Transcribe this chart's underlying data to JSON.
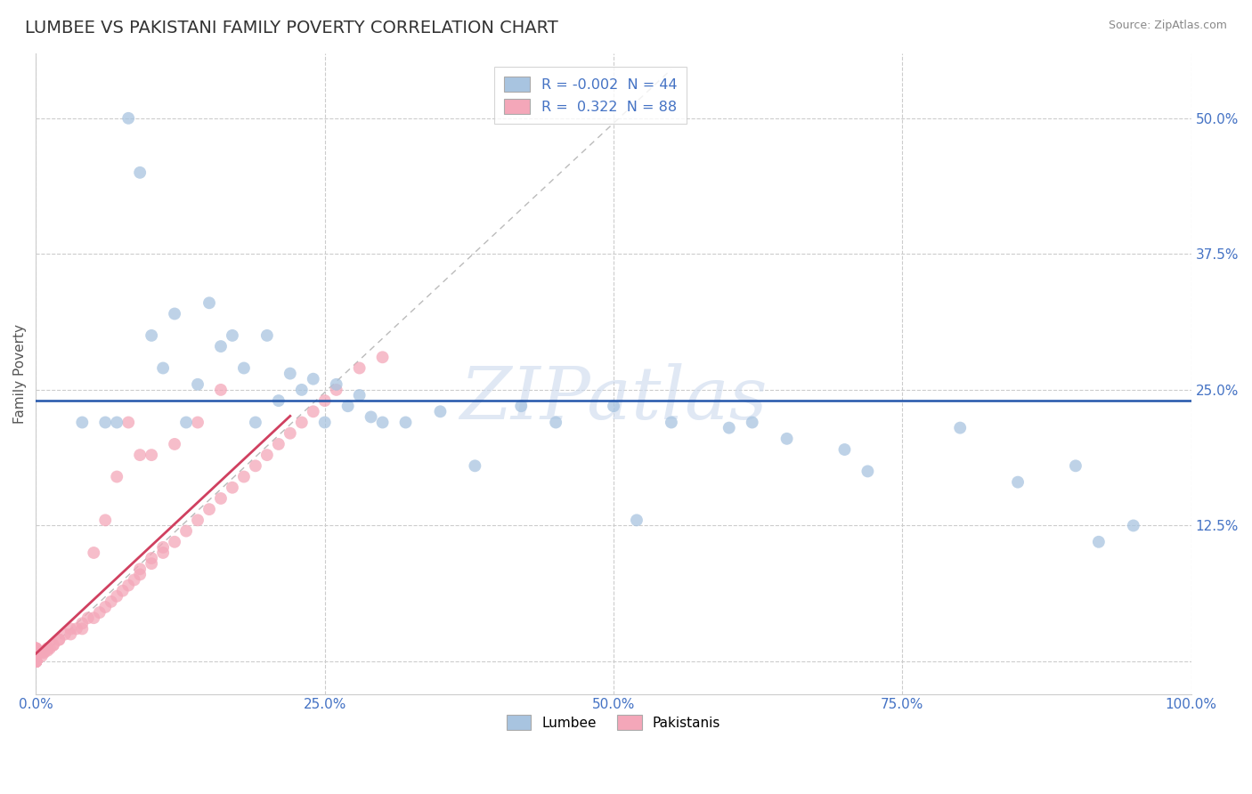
{
  "title": "LUMBEE VS PAKISTANI FAMILY POVERTY CORRELATION CHART",
  "source": "Source: ZipAtlas.com",
  "ylabel": "Family Poverty",
  "xlim": [
    0.0,
    1.0
  ],
  "ylim": [
    -0.03,
    0.56
  ],
  "xticks": [
    0.0,
    0.25,
    0.5,
    0.75,
    1.0
  ],
  "xtick_labels": [
    "0.0%",
    "25.0%",
    "50.0%",
    "75.0%",
    "100.0%"
  ],
  "yticks": [
    0.0,
    0.125,
    0.25,
    0.375,
    0.5
  ],
  "ytick_labels": [
    "",
    "12.5%",
    "25.0%",
    "37.5%",
    "50.0%"
  ],
  "lumbee_R": -0.002,
  "lumbee_N": 44,
  "pakistani_R": 0.322,
  "pakistani_N": 88,
  "lumbee_color": "#a8c4e0",
  "pakistani_color": "#f4a7b9",
  "lumbee_line_color": "#2255aa",
  "pakistani_line_color": "#d04060",
  "watermark": "ZIPatlas",
  "diagonal_color": "#cccccc",
  "grid_color": "#cccccc",
  "lumbee_x": [
    0.04,
    0.08,
    0.09,
    0.1,
    0.11,
    0.12,
    0.13,
    0.15,
    0.16,
    0.17,
    0.18,
    0.19,
    0.2,
    0.22,
    0.25,
    0.26,
    0.28,
    0.3,
    0.35,
    0.42,
    0.5,
    0.55,
    0.6,
    0.65,
    0.7,
    0.8,
    0.9,
    0.92,
    0.06,
    0.07,
    0.14,
    0.21,
    0.23,
    0.24,
    0.27,
    0.29,
    0.32,
    0.38,
    0.45,
    0.52,
    0.62,
    0.72,
    0.85,
    0.95
  ],
  "lumbee_y": [
    0.22,
    0.5,
    0.45,
    0.3,
    0.27,
    0.32,
    0.22,
    0.33,
    0.29,
    0.3,
    0.27,
    0.22,
    0.3,
    0.265,
    0.22,
    0.255,
    0.245,
    0.22,
    0.23,
    0.235,
    0.235,
    0.22,
    0.215,
    0.205,
    0.195,
    0.215,
    0.18,
    0.11,
    0.22,
    0.22,
    0.255,
    0.24,
    0.25,
    0.26,
    0.235,
    0.225,
    0.22,
    0.18,
    0.22,
    0.13,
    0.22,
    0.175,
    0.165,
    0.125
  ],
  "pak_x": [
    0.0,
    0.0,
    0.0,
    0.0,
    0.0,
    0.0,
    0.0,
    0.0,
    0.0,
    0.0,
    0.0,
    0.0,
    0.0,
    0.0,
    0.0,
    0.0,
    0.0,
    0.0,
    0.0,
    0.0,
    0.0,
    0.0,
    0.0,
    0.0,
    0.0,
    0.0,
    0.0,
    0.0,
    0.0,
    0.0,
    0.005,
    0.005,
    0.007,
    0.008,
    0.01,
    0.01,
    0.012,
    0.015,
    0.015,
    0.02,
    0.02,
    0.025,
    0.03,
    0.03,
    0.035,
    0.04,
    0.04,
    0.045,
    0.05,
    0.055,
    0.06,
    0.065,
    0.07,
    0.075,
    0.08,
    0.085,
    0.09,
    0.09,
    0.1,
    0.1,
    0.11,
    0.11,
    0.12,
    0.13,
    0.14,
    0.15,
    0.16,
    0.17,
    0.18,
    0.19,
    0.2,
    0.21,
    0.22,
    0.23,
    0.24,
    0.25,
    0.26,
    0.28,
    0.3,
    0.05,
    0.06,
    0.07,
    0.08,
    0.09,
    0.1,
    0.12,
    0.14,
    0.16
  ],
  "pak_y": [
    0.0,
    0.0,
    0.0,
    0.0,
    0.0,
    0.0,
    0.0,
    0.0,
    0.0,
    0.0,
    0.0,
    0.0,
    0.0,
    0.0,
    0.0,
    0.005,
    0.005,
    0.005,
    0.005,
    0.005,
    0.008,
    0.008,
    0.008,
    0.01,
    0.01,
    0.01,
    0.01,
    0.012,
    0.012,
    0.012,
    0.005,
    0.008,
    0.008,
    0.01,
    0.01,
    0.012,
    0.012,
    0.015,
    0.015,
    0.02,
    0.02,
    0.025,
    0.025,
    0.03,
    0.03,
    0.03,
    0.035,
    0.04,
    0.04,
    0.045,
    0.05,
    0.055,
    0.06,
    0.065,
    0.07,
    0.075,
    0.08,
    0.085,
    0.09,
    0.095,
    0.1,
    0.105,
    0.11,
    0.12,
    0.13,
    0.14,
    0.15,
    0.16,
    0.17,
    0.18,
    0.19,
    0.2,
    0.21,
    0.22,
    0.23,
    0.24,
    0.25,
    0.27,
    0.28,
    0.1,
    0.13,
    0.17,
    0.22,
    0.19,
    0.19,
    0.2,
    0.22,
    0.25
  ]
}
